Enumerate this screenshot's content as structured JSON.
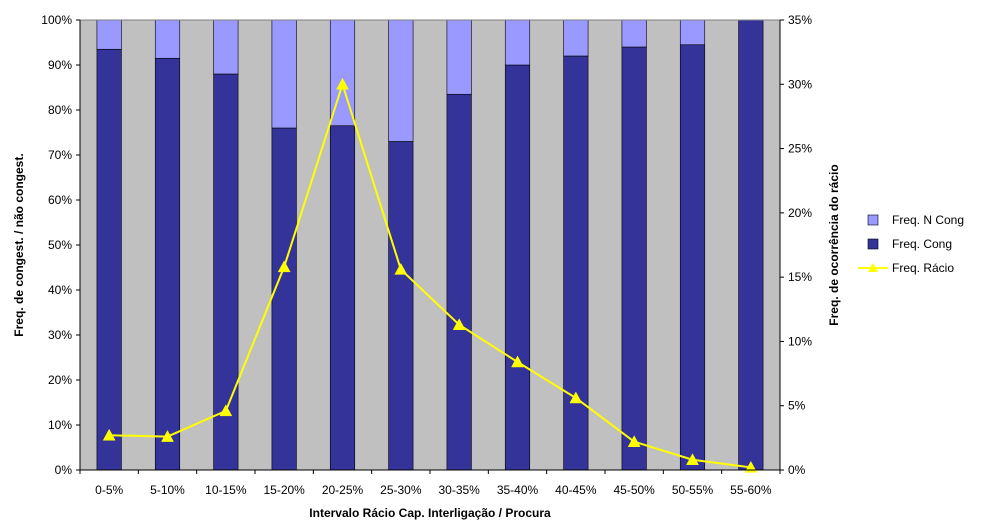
{
  "chart_data": {
    "type": "bar",
    "stacked": true,
    "categories": [
      "0-5%",
      "5-10%",
      "10-15%",
      "15-20%",
      "20-25%",
      "25-30%",
      "30-35%",
      "35-40%",
      "40-45%",
      "45-50%",
      "50-55%",
      "55-60%"
    ],
    "series": [
      {
        "name": "Freq. Cong",
        "type": "bar",
        "axis": "left",
        "color": "#333399",
        "values": [
          93.5,
          91.5,
          88,
          76,
          76.5,
          73,
          83.5,
          90,
          92,
          94,
          94.5,
          100
        ]
      },
      {
        "name": "Freq. N Cong",
        "type": "bar",
        "axis": "left",
        "color": "#9999ff",
        "values": [
          6.5,
          8.5,
          12,
          24,
          23.5,
          27,
          16.5,
          10,
          8,
          6,
          5.5,
          0
        ]
      },
      {
        "name": "Freq. Rácio",
        "type": "line",
        "axis": "right",
        "color": "#ffff00",
        "marker": "triangle",
        "values": [
          2.7,
          2.6,
          4.6,
          15.8,
          30,
          15.6,
          11.3,
          8.4,
          5.6,
          2.2,
          0.8,
          0.2
        ]
      }
    ],
    "left_axis": {
      "ylim": [
        0,
        100
      ],
      "ticks": [
        "0%",
        "10%",
        "20%",
        "30%",
        "40%",
        "50%",
        "60%",
        "70%",
        "80%",
        "90%",
        "100%"
      ],
      "label": "Freq. de congest. / não congest."
    },
    "right_axis": {
      "ylim": [
        0,
        35
      ],
      "ticks": [
        "0%",
        "5%",
        "10%",
        "15%",
        "20%",
        "25%",
        "30%",
        "35%"
      ],
      "label": "Freq. de ocorrência do rácio"
    },
    "xlabel": "Intervalo Rácio Cap. Interligação / Procura",
    "plot_background": "#c0c0c0",
    "grid": false,
    "legend_position": "right",
    "legend_order": [
      "Freq. N Cong",
      "Freq. Cong",
      "Freq. Rácio"
    ]
  }
}
